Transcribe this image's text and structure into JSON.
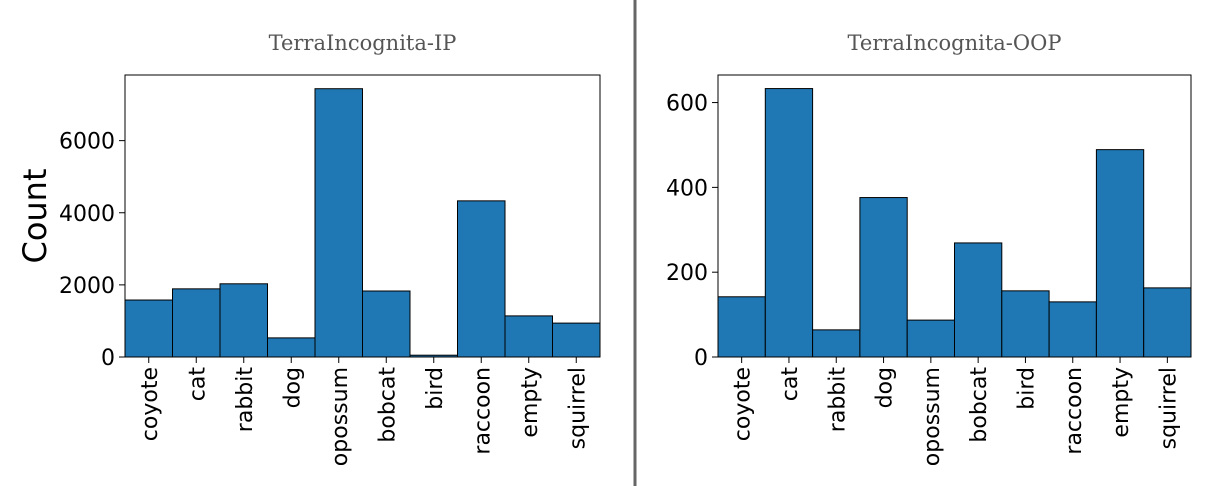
{
  "chart_data": [
    {
      "type": "bar",
      "title": "TerraIncognita-IP",
      "ylabel": "Count",
      "color": "#1f77b4",
      "categories": [
        "coyote",
        "cat",
        "rabbit",
        "dog",
        "opossum",
        "bobcat",
        "bird",
        "raccoon",
        "empty",
        "squirrel"
      ],
      "values": [
        1580,
        1890,
        2030,
        530,
        7440,
        1830,
        50,
        4330,
        1140,
        940
      ],
      "ylim": [
        0,
        7820
      ],
      "yticks": [
        0,
        2000,
        4000,
        6000
      ]
    },
    {
      "type": "bar",
      "title": "TerraIncognita-OOP",
      "color": "#1f77b4",
      "categories": [
        "coyote",
        "cat",
        "rabbit",
        "dog",
        "opossum",
        "bobcat",
        "bird",
        "raccoon",
        "empty",
        "squirrel"
      ],
      "values": [
        142,
        633,
        64,
        376,
        87,
        269,
        156,
        130,
        489,
        163
      ],
      "ylim": [
        0,
        665
      ],
      "yticks": [
        0,
        200,
        400,
        600
      ]
    }
  ]
}
